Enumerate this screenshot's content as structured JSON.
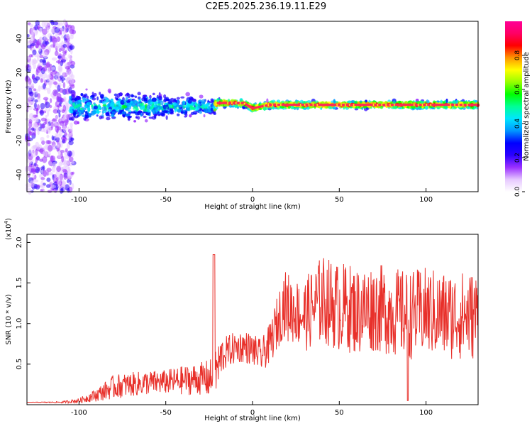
{
  "title": "C2E5.2025.236.19.11.E29",
  "chart_data": [
    {
      "type": "heatmap",
      "xlabel": "Height of straight line (km)",
      "ylabel": "Frequency (Hz)",
      "xlim": [
        -130,
        130
      ],
      "ylim": [
        -50,
        50
      ],
      "xticks": [
        "-100",
        "-50",
        "0",
        "50",
        "100"
      ],
      "yticks": [
        "-40",
        "-20",
        "0",
        "20",
        "40"
      ],
      "colorbar": {
        "label": "Normalized spectral amplitude",
        "range": [
          0.0,
          1.0
        ],
        "ticks": [
          "0.0",
          "0.2",
          "0.4",
          "0.6",
          "0.8"
        ],
        "colors": [
          "#ffffff",
          "#e6c8ff",
          "#9b30ff",
          "#2b00ff",
          "#0000ff",
          "#0096ff",
          "#00e6ff",
          "#00ff96",
          "#00ff00",
          "#96ff00",
          "#ffff00",
          "#ff9600",
          "#ff0000",
          "#ff0064",
          "#ff0096"
        ]
      },
      "ridge": [
        {
          "x": -130,
          "f": 0,
          "spread": 45
        },
        {
          "x": -105,
          "f": 0,
          "spread": 8
        },
        {
          "x": -60,
          "f": 0,
          "spread": 8
        },
        {
          "x": -22,
          "f": 0,
          "spread": 4
        },
        {
          "x": -20,
          "f": 2,
          "spread": 2
        },
        {
          "x": -5,
          "f": 2,
          "spread": 2
        },
        {
          "x": 0,
          "f": -1,
          "spread": 2
        },
        {
          "x": 10,
          "f": 1,
          "spread": 2
        },
        {
          "x": 15,
          "f": 1,
          "spread": 2
        },
        {
          "x": 130,
          "f": 1,
          "spread": 2
        }
      ]
    },
    {
      "type": "line",
      "xlabel": "Height of straight line (km)",
      "ylabel": "SNR (10 * v/v)",
      "ylabel_multiplier": "(x10",
      "ylabel_exp": "4",
      "xlim": [
        -130,
        130
      ],
      "ylim": [
        0,
        2.1
      ],
      "xticks": [
        "-100",
        "-50",
        "0",
        "50",
        "100"
      ],
      "yticks": [
        "0.5",
        "1.0",
        "1.5",
        "2.0"
      ],
      "line_color": "#e8302a",
      "series": [
        {
          "name": "SNR",
          "x": [
            -130,
            -110,
            -100,
            -90,
            -80,
            -70,
            -60,
            -50,
            -40,
            -30,
            -24,
            -22,
            -20,
            -18,
            -15,
            -10,
            -5,
            0,
            5,
            10,
            15,
            18,
            20,
            25,
            30,
            35,
            40,
            45,
            50,
            55,
            60,
            70,
            80,
            90,
            100,
            110,
            120,
            130
          ],
          "values": [
            0.03,
            0.03,
            0.05,
            0.12,
            0.22,
            0.25,
            0.27,
            0.28,
            0.3,
            0.32,
            0.32,
            0.35,
            0.45,
            0.6,
            0.65,
            0.7,
            0.72,
            0.68,
            0.6,
            0.75,
            1.05,
            1.25,
            1.2,
            1.15,
            1.1,
            1.2,
            1.3,
            1.25,
            1.2,
            1.2,
            1.15,
            1.2,
            1.15,
            1.1,
            1.15,
            1.1,
            1.1,
            1.1
          ],
          "amplitude": [
            0.0,
            0.01,
            0.03,
            0.08,
            0.15,
            0.15,
            0.15,
            0.15,
            0.18,
            0.2,
            0.25,
            0.45,
            0.3,
            0.25,
            0.2,
            0.2,
            0.2,
            0.2,
            0.2,
            0.25,
            0.35,
            0.4,
            0.45,
            0.4,
            0.45,
            0.5,
            0.55,
            0.55,
            0.55,
            0.55,
            0.55,
            0.55,
            0.55,
            0.55,
            0.55,
            0.55,
            0.55,
            0.55
          ]
        }
      ]
    }
  ]
}
